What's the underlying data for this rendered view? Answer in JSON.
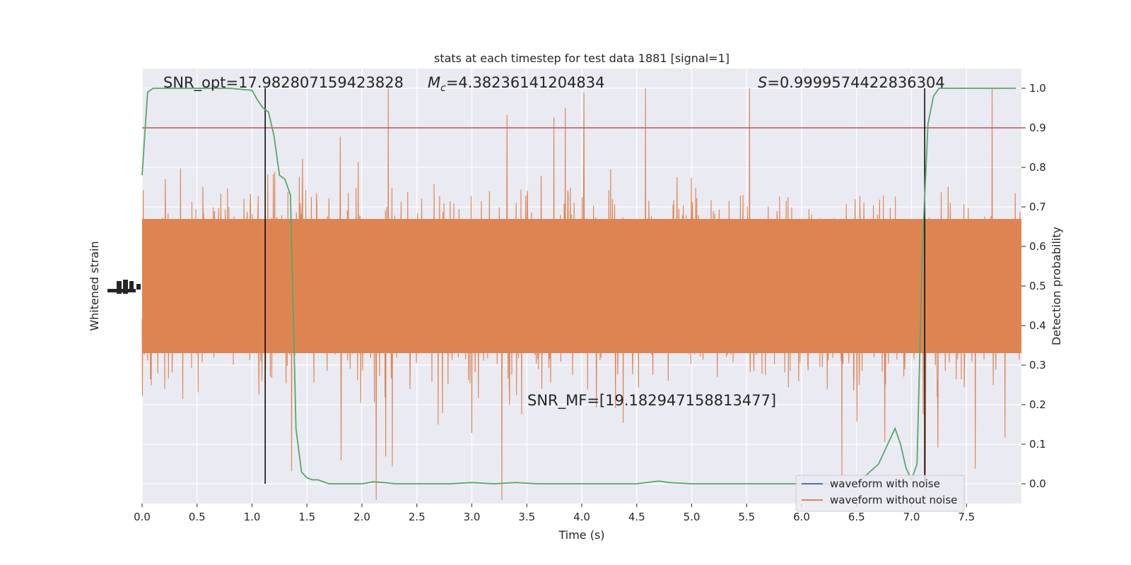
{
  "chart_data": {
    "type": "line",
    "title": "stats at each timestep for test data 1881 [signal=1]",
    "xlabel": "Time (s)",
    "ylabel_left": "Whitened strain",
    "ylabel_right": "Detection probability",
    "xlim": [
      0,
      8
    ],
    "ylim_right": [
      -0.05,
      1.05
    ],
    "x_ticks": [
      0.0,
      0.5,
      1.0,
      1.5,
      2.0,
      2.5,
      3.0,
      3.5,
      4.0,
      4.5,
      5.0,
      5.5,
      6.0,
      6.5,
      7.0,
      7.5
    ],
    "x_tick_labels": [
      "0.0",
      "0.5",
      "1.0",
      "1.5",
      "2.0",
      "2.5",
      "3.0",
      "3.5",
      "4.0",
      "4.5",
      "5.0",
      "5.5",
      "6.0",
      "6.5",
      "7.0",
      "7.5"
    ],
    "y_right_ticks": [
      0.0,
      0.1,
      0.2,
      0.3,
      0.4,
      0.5,
      0.6,
      0.7,
      0.8,
      0.9,
      1.0
    ],
    "y_right_tick_labels": [
      "0.0",
      "0.1",
      "0.2",
      "0.3",
      "0.4",
      "0.5",
      "0.6",
      "0.7",
      "0.8",
      "0.9",
      "1.0"
    ],
    "grid": true,
    "legend_position": "lower right",
    "series": [
      {
        "name": "waveform with noise",
        "color": "#4c72b0",
        "axis": "left"
      },
      {
        "name": "waveform without noise",
        "color": "#dd8452",
        "axis": "left"
      }
    ],
    "detection_probability": {
      "color": "#55a868",
      "x": [
        0.0,
        0.05,
        0.1,
        0.2,
        0.5,
        0.8,
        1.0,
        1.05,
        1.1,
        1.15,
        1.2,
        1.25,
        1.3,
        1.35,
        1.4,
        1.45,
        1.5,
        1.55,
        1.6,
        1.7,
        1.8,
        2.0,
        2.1,
        2.2,
        2.3,
        2.5,
        2.8,
        3.0,
        3.2,
        3.4,
        3.6,
        4.0,
        4.5,
        4.7,
        4.8,
        5.0,
        5.5,
        6.0,
        6.5,
        6.7,
        6.8,
        6.85,
        6.9,
        6.95,
        7.0,
        7.05,
        7.1,
        7.15,
        7.2,
        7.25,
        7.3,
        7.4,
        7.5,
        7.8,
        7.95
      ],
      "y": [
        0.78,
        0.99,
        1.0,
        1.0,
        1.0,
        1.0,
        0.995,
        0.97,
        0.95,
        0.94,
        0.88,
        0.78,
        0.77,
        0.73,
        0.14,
        0.03,
        0.015,
        0.01,
        0.01,
        0.0,
        0.0,
        0.0,
        0.005,
        0.003,
        0.0,
        0.0,
        0.0,
        0.003,
        0.0,
        0.003,
        0.0,
        0.0,
        0.0,
        0.007,
        0.003,
        0.0,
        0.0,
        0.0,
        0.0,
        0.05,
        0.11,
        0.14,
        0.1,
        0.04,
        0.01,
        0.05,
        0.6,
        0.91,
        0.98,
        1.0,
        1.0,
        1.0,
        1.0,
        1.0,
        1.0
      ]
    },
    "threshold": {
      "y": 0.9,
      "color": "#c44e52"
    },
    "event_lines_x": [
      1.12,
      7.12
    ],
    "annotations": [
      {
        "id": "snr-opt",
        "text": "SNR_opt=17.982807159423828"
      },
      {
        "id": "mc",
        "symbol": "M",
        "subscript": "c",
        "text": "=4.38236141204834"
      },
      {
        "id": "s",
        "symbol": "S",
        "text": "=0.9999574422836304"
      },
      {
        "id": "snr-mf",
        "text": "SNR_MF=[19.182947158813477]"
      }
    ]
  }
}
